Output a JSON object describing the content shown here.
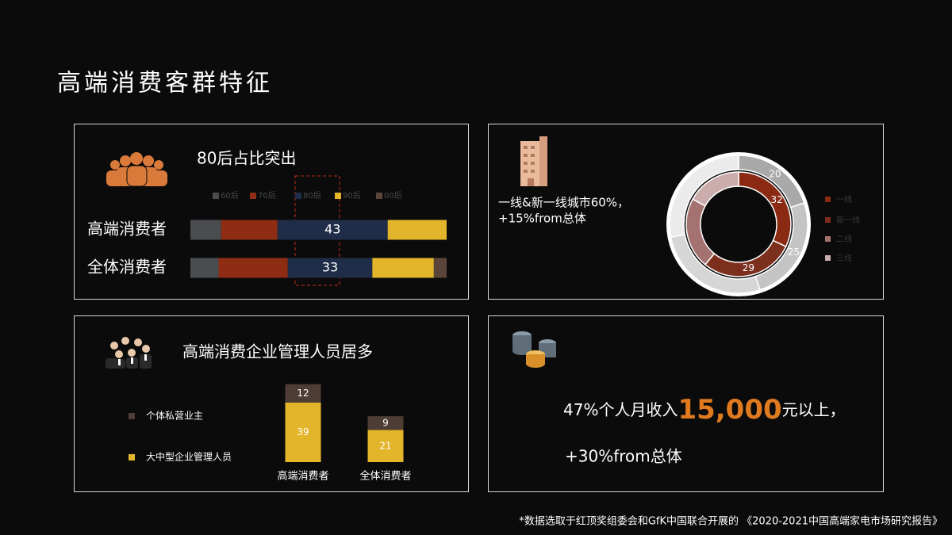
{
  "title": "高端消费客群特征",
  "chart_data": [
    {
      "type": "bar",
      "orientation": "horizontal",
      "stacked": true,
      "title": "80后占比突出",
      "categories": [
        "高端消费者",
        "全体消费者"
      ],
      "series": [
        {
          "name": "60后",
          "color": "#4a4d50",
          "values": [
            12,
            11
          ]
        },
        {
          "name": "70后",
          "color": "#8e2d14",
          "values": [
            22,
            27
          ]
        },
        {
          "name": "80后",
          "color": "#1f2d48",
          "values": [
            43,
            33
          ]
        },
        {
          "name": "90后",
          "color": "#e2b52a",
          "values": [
            23,
            24
          ]
        },
        {
          "name": "00后",
          "color": "#5a4538",
          "values": [
            0,
            5
          ]
        }
      ],
      "xlim": [
        0,
        100
      ],
      "highlight_series": 2
    },
    {
      "type": "pie",
      "donut": true,
      "categories": [
        "一线",
        "新一线",
        "二线",
        "三线"
      ],
      "colors": [
        "#8a2a12",
        "#7d2f1d",
        "#a57272",
        "#cbadad"
      ],
      "series": [
        {
          "colors": [
            "#a9a9a9",
            "#c4c4c4",
            "#d6d6d6",
            "#ebebeb"
          ],
          "values": [
            20,
            25,
            27,
            28
          ]
        },
        {
          "values": [
            32,
            29,
            22,
            17
          ]
        }
      ],
      "show_labels": [
        true,
        true,
        false,
        false
      ]
    },
    {
      "type": "bar",
      "orientation": "vertical",
      "stacked": true,
      "title": "高端消费企业管理人员居多",
      "categories": [
        "高端消费者",
        "全体消费者"
      ],
      "series": [
        {
          "name": "大中型企业管理人员",
          "color": "#e2b52a",
          "values": [
            39,
            21
          ]
        },
        {
          "name": "个体私营业主",
          "color": "#4e3d34",
          "values": [
            12,
            9
          ]
        }
      ],
      "ylim": [
        0,
        55
      ]
    }
  ],
  "city_note": [
    "一线&新一线城市60%，",
    "+15%from总体"
  ],
  "income": {
    "prefix": "47%个人月收入",
    "highlight": "15,000",
    "suffix": "元以上，",
    "note": "+30%from总体"
  },
  "footnote": "*数据选取于红顶奖组委会和GfK中国联合开展的 《2020-2021中国高端家电市场研究报告》"
}
